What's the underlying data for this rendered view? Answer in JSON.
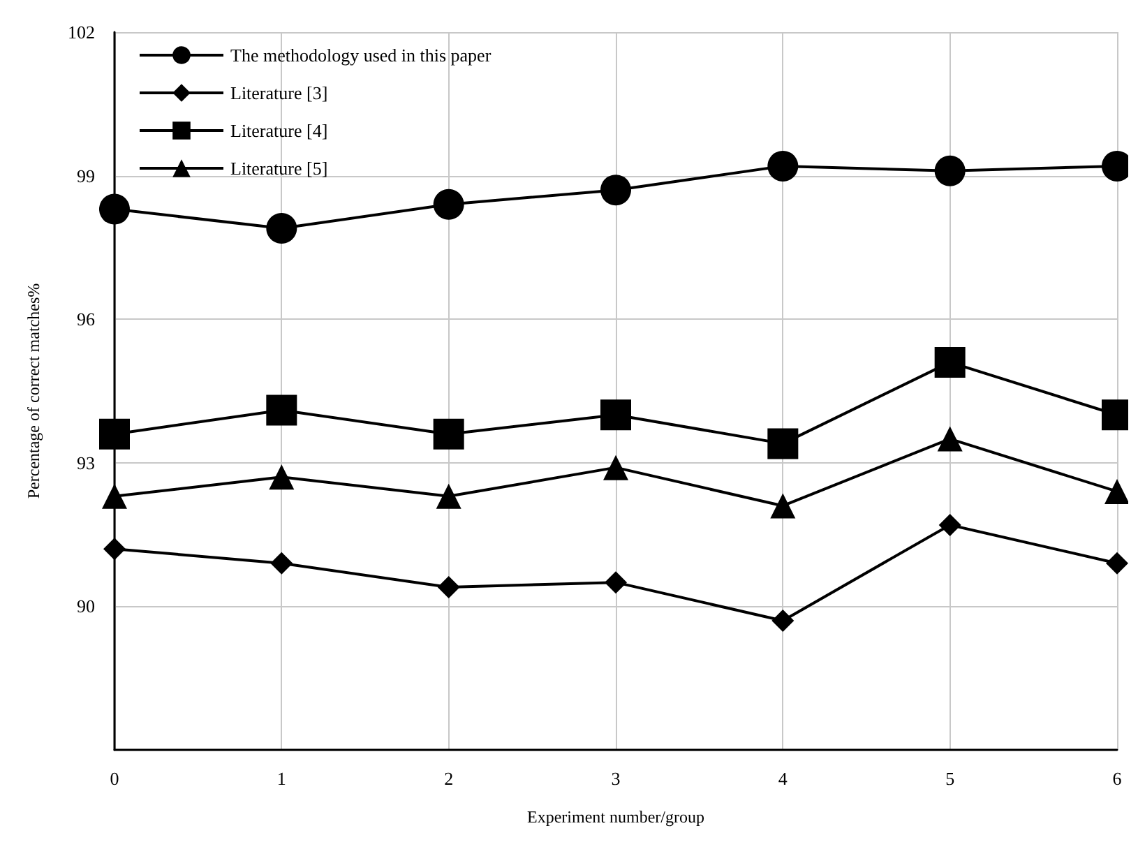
{
  "chart_data": {
    "type": "line",
    "xlabel": "Experiment number/group",
    "ylabel": "Percentage of correct matches%",
    "x": [
      0,
      1,
      2,
      3,
      4,
      5,
      6
    ],
    "series": [
      {
        "name": "The methodology used in this paper",
        "color": "#000000",
        "marker": "circle",
        "values": [
          98.3,
          97.9,
          98.4,
          98.7,
          99.2,
          99.1,
          99.2
        ]
      },
      {
        "name": "Literature [3]",
        "color": "#000000",
        "marker": "diamond",
        "values": [
          91.2,
          90.9,
          90.4,
          90.5,
          89.7,
          91.7,
          90.9
        ]
      },
      {
        "name": "Literature [4]",
        "color": "#000000",
        "marker": "square",
        "values": [
          93.6,
          94.1,
          93.6,
          94.0,
          93.4,
          95.1,
          94.0
        ]
      },
      {
        "name": "Literature [5]",
        "color": "#000000",
        "marker": "triangle",
        "values": [
          92.3,
          92.7,
          92.3,
          92.9,
          92.1,
          93.5,
          92.4
        ]
      }
    ],
    "xlim": [
      0,
      6
    ],
    "xticks": [
      0,
      1,
      2,
      3,
      4,
      5,
      6
    ],
    "ylim": [
      87,
      102
    ],
    "yticks": [
      {
        "value": 87,
        "label": null
      },
      90,
      93,
      96,
      99,
      102
    ],
    "grid": true,
    "legend": "top left",
    "line_style": "solid"
  }
}
